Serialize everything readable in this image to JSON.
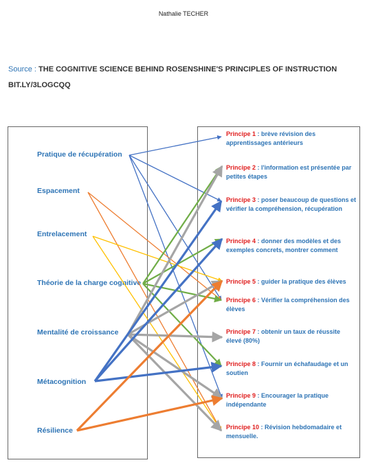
{
  "header": {
    "author": "Nathalie TECHER",
    "source_label": "Source : ",
    "source_title": "THE COGNITIVE SCIENCE BEHIND ROSENSHINE'S PRINCIPLES OF INSTRUCTION",
    "link": "BIT.LY/3LOGCQQ"
  },
  "left_items": [
    {
      "label": "Pratique de récupération"
    },
    {
      "label": "Espacement"
    },
    {
      "label": "Entrelacement"
    },
    {
      "label": "Théorie de la charge cognitive"
    },
    {
      "label": "Mentalité de croissance"
    },
    {
      "label": "Métacognition"
    },
    {
      "label": "Résilience"
    }
  ],
  "principles": [
    {
      "num": "Principe 1",
      "sep": " : ",
      "text": "brève révision des apprentissages antérieurs"
    },
    {
      "num": "Principe 2",
      "sep": " : ",
      "text": "l'information est présentée par petites étapes"
    },
    {
      "num": "Principe 3",
      "sep": " : ",
      "text": "poser beaucoup de questions et vérifier la compréhension, récupération"
    },
    {
      "num": "Principe 4",
      "sep": " : ",
      "text": "donner des modèles et des exemples concrets, montrer comment"
    },
    {
      "num": "Principe 5",
      "sep": " : ",
      "text": "guider la pratique des élèves"
    },
    {
      "num": "Principe 6",
      "sep": " : ",
      "text": "Vérifier la compréhension des élèves"
    },
    {
      "num": "Principe 7",
      "sep": " : ",
      "text": "obtenir un taux de réussite élevé (80%)"
    },
    {
      "num": "Principe 8",
      "sep": " : ",
      "text": "Fournir un échafaudage et un soutien"
    },
    {
      "num": "Principe 9",
      "sep": " : ",
      "text": "Encourager la pratique indépendante"
    },
    {
      "num": "Principe 10",
      "sep": " : ",
      "text": "Révision hebdomadaire et mensuelle."
    }
  ],
  "connections": [
    {
      "from": 0,
      "to": 0,
      "color": "#4472c4",
      "weight": "thin"
    },
    {
      "from": 0,
      "to": 2,
      "color": "#4472c4",
      "weight": "thin"
    },
    {
      "from": 0,
      "to": 5,
      "color": "#4472c4",
      "weight": "thin"
    },
    {
      "from": 0,
      "to": 8,
      "color": "#4472c4",
      "weight": "thin"
    },
    {
      "from": 1,
      "to": 5,
      "color": "#ed7d31",
      "weight": "thin"
    },
    {
      "from": 1,
      "to": 9,
      "color": "#ed7d31",
      "weight": "thin"
    },
    {
      "from": 2,
      "to": 4,
      "color": "#ffc000",
      "weight": "thin"
    },
    {
      "from": 2,
      "to": 9,
      "color": "#ffc000",
      "weight": "thin"
    },
    {
      "from": 3,
      "to": 1,
      "color": "#70ad47",
      "weight": "medium"
    },
    {
      "from": 3,
      "to": 3,
      "color": "#70ad47",
      "weight": "medium"
    },
    {
      "from": 3,
      "to": 5,
      "color": "#70ad47",
      "weight": "medium"
    },
    {
      "from": 3,
      "to": 7,
      "color": "#70ad47",
      "weight": "medium"
    },
    {
      "from": 4,
      "to": 1,
      "color": "#a5a5a5",
      "weight": "thick"
    },
    {
      "from": 4,
      "to": 4,
      "color": "#a5a5a5",
      "weight": "thick"
    },
    {
      "from": 4,
      "to": 6,
      "color": "#a5a5a5",
      "weight": "thick"
    },
    {
      "from": 4,
      "to": 8,
      "color": "#a5a5a5",
      "weight": "thick"
    },
    {
      "from": 4,
      "to": 9,
      "color": "#a5a5a5",
      "weight": "thick"
    },
    {
      "from": 5,
      "to": 2,
      "color": "#4472c4",
      "weight": "thick"
    },
    {
      "from": 5,
      "to": 3,
      "color": "#4472c4",
      "weight": "thick"
    },
    {
      "from": 5,
      "to": 7,
      "color": "#4472c4",
      "weight": "thick"
    },
    {
      "from": 6,
      "to": 4,
      "color": "#ed7d31",
      "weight": "thick"
    },
    {
      "from": 6,
      "to": 8,
      "color": "#ed7d31",
      "weight": "thick"
    }
  ]
}
